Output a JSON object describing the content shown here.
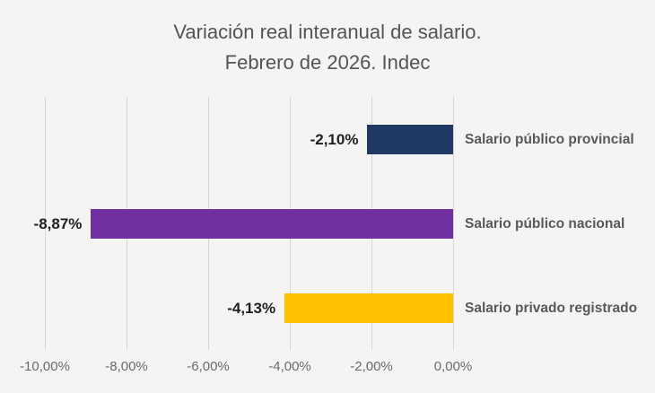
{
  "chart_data": {
    "type": "bar",
    "orientation": "horizontal",
    "title_line1": "Variación real interanual de salario.",
    "title_line2": "Febrero de 2026. Indec",
    "categories": [
      "Salario público provincial",
      "Salario público nacional",
      "Salario privado registrado"
    ],
    "values": [
      -2.1,
      -8.87,
      -4.13
    ],
    "value_labels": [
      "-2,10%",
      "-8,87%",
      "-4,13%"
    ],
    "bar_colors": [
      "#1F3864",
      "#7030A0",
      "#FFC000"
    ],
    "x_ticks": [
      "-10,00%",
      "-8,00%",
      "-6,00%",
      "-4,00%",
      "-2,00%",
      "0,00%"
    ],
    "xlim": [
      -10,
      0
    ],
    "grid": "vertical-gridlines-on",
    "legend": "none",
    "background_color": "#F5F4F2",
    "title_color": "#545454",
    "gridline_color": "#D8D7D5"
  }
}
